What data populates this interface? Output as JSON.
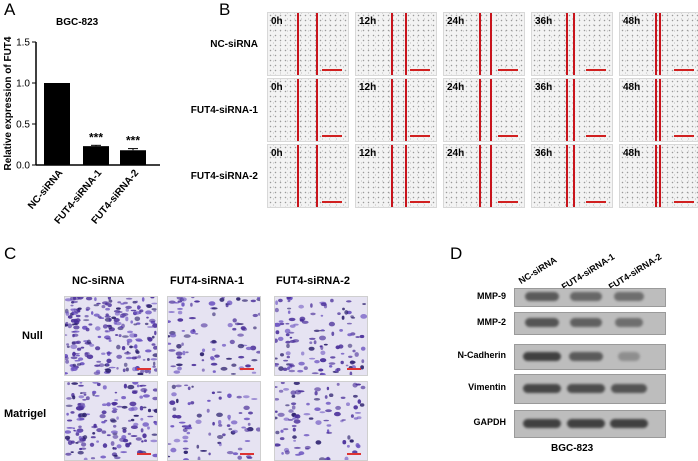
{
  "panels": {
    "a": "A",
    "b": "B",
    "c": "C",
    "d": "D"
  },
  "panel_a": {
    "title": "BGC-823",
    "significance": [
      "***",
      "***"
    ]
  },
  "chart_data": {
    "type": "bar",
    "categories": [
      "NC-siRNA",
      "FUT4-siRNA-1",
      "FUT4-siRNA-2"
    ],
    "values": [
      1.0,
      0.23,
      0.18
    ],
    "errors": [
      0.0,
      0.01,
      0.02
    ],
    "title": "BGC-823",
    "xlabel": "",
    "ylabel": "Relative expression of FUT4",
    "ylim": [
      0.0,
      1.5
    ],
    "yticks": [
      "0.0",
      "0.5",
      "1.0",
      "1.5"
    ],
    "grid": false
  },
  "panel_b": {
    "rows": [
      "NC-siRNA",
      "FUT4-siRNA-1",
      "FUT4-siRNA-2"
    ],
    "timepoints": [
      "0h",
      "12h",
      "24h",
      "36h",
      "48h"
    ]
  },
  "panel_c": {
    "columns": [
      "NC-siRNA",
      "FUT4-siRNA-1",
      "FUT4-siRNA-2"
    ],
    "rows": [
      "Null",
      "Matrigel"
    ]
  },
  "panel_d": {
    "lanes": [
      "NC-siRNA",
      "FUT4-siRNA-1",
      "FUT4-siRNA-2"
    ],
    "proteins": [
      "MMP-9",
      "MMP-2",
      "N-Cadherin",
      "Vimentin",
      "GAPDH"
    ],
    "cell_line": "BGC-823"
  }
}
